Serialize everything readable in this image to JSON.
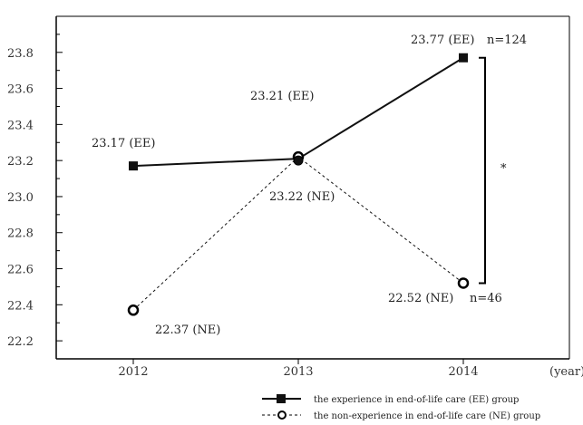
{
  "chart_data": {
    "type": "line",
    "categories": [
      "2012",
      "2013",
      "2014"
    ],
    "xlabel": "(year)",
    "ylabel": "",
    "ylim": [
      22.1,
      24.0
    ],
    "yticks": [
      "22.2",
      "22.4",
      "22.6",
      "22.8",
      "23.0",
      "23.2",
      "23.4",
      "23.6",
      "23.8"
    ],
    "series": [
      {
        "name": "the experience in end-of-life care (EE) group",
        "values": [
          23.17,
          23.21,
          23.77
        ],
        "labels": [
          "23.17 (EE)",
          "23.21 (EE)",
          "23.77 (EE)"
        ],
        "style": "solid",
        "marker": "filled-square",
        "color": "#111111"
      },
      {
        "name": "the non-experience in end-of-life care (NE) group",
        "values": [
          22.37,
          23.22,
          22.52
        ],
        "labels": [
          "22.37 (NE)",
          "23.22 (NE)",
          "22.52 (NE)"
        ],
        "style": "dashed",
        "marker": "open-circle",
        "color": "#111111"
      }
    ],
    "annotations": {
      "ee_n": "n=124",
      "ne_n": "n=46",
      "significance": "*"
    },
    "legend_position": "bottom-right",
    "grid": false
  }
}
